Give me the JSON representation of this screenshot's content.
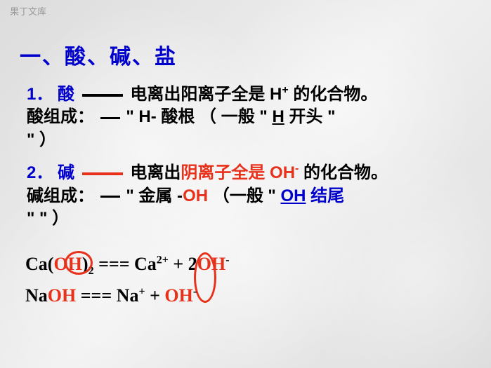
{
  "watermark": "果丁文库",
  "heading": {
    "prefix_blue": "一、",
    "text_blue": "酸、碱、盐"
  },
  "acid": {
    "num": "1．",
    "name": "酸",
    "def_a": "电离出阳离子全是",
    "hplus": " H",
    "def_b": " 的化合物。",
    "comp_label": "酸组成：",
    "comp_a": "\"  H- 酸根   （ 一般  \" ",
    "comp_h": "H",
    "comp_b": " 开头 \"",
    "closepar": "\"                                       ）"
  },
  "base": {
    "num": "2．",
    "name": "碱",
    "def_a": "电离出",
    "def_anion": "阴离子全是",
    "oh": " OH",
    "def_b": " 的化合物。",
    "comp_label": "碱组成：",
    "comp_a": "\" 金属 -",
    "comp_oh": "OH",
    "comp_b": "  （一般   \" ",
    "comp_ohmark": "OH",
    "comp_c": " 结尾",
    "closepar": "\"                                           \"   ）"
  },
  "formulas": {
    "ca": {
      "p1": "Ca(",
      "oh": "OH",
      "p2": ")",
      "sub2": "2",
      "eq": " === Ca",
      "sup2p": "2+",
      "p3": " + 2",
      "oh2": "OH",
      "supm": "-"
    },
    "na": {
      "p1": " NaO",
      "oh_red_h": "H",
      "eq": "  === ",
      "p2": " Na",
      "supp": "+",
      "p3": " + ",
      "oh2": "OH",
      "supm": "-"
    },
    "na_full": {
      "a": " Na",
      "oh": "OH",
      "eq": "  ===  Na",
      "supp": "+",
      "plus": " + ",
      "oh2": "OH",
      "supm": "-"
    }
  },
  "colors": {
    "blue": "#0000cc",
    "red": "#e8311a",
    "orange": "#ff5500",
    "black": "#000000",
    "bg": "#e8e8e8"
  }
}
